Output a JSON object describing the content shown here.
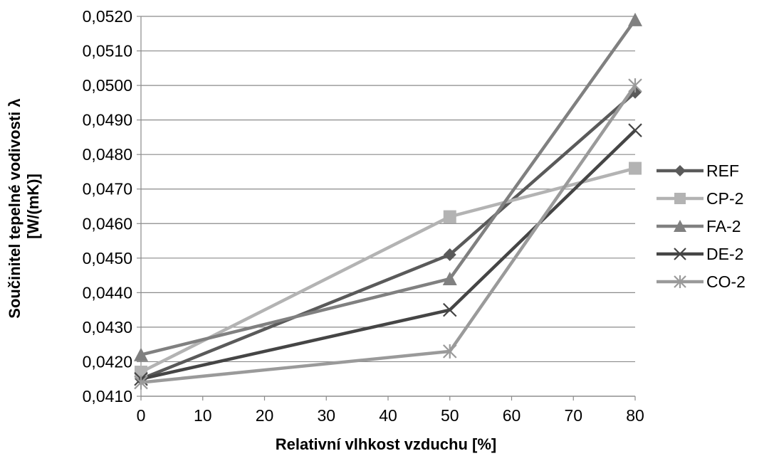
{
  "chart_data": {
    "type": "line",
    "xlabel": "Relativní vlhkost vzduchu [%]",
    "ylabel_lines": [
      "Součinitel tepelné vodivosti λ",
      "[W/(mK)]"
    ],
    "xlim": [
      0,
      80
    ],
    "ylim": [
      0.041,
      0.052
    ],
    "x_ticks": [
      0,
      10,
      20,
      30,
      40,
      50,
      60,
      70,
      80
    ],
    "x_tick_labels": [
      "0",
      "10",
      "20",
      "30",
      "40",
      "50",
      "60",
      "70",
      "80"
    ],
    "y_ticks": [
      0.041,
      0.042,
      0.043,
      0.044,
      0.045,
      0.046,
      0.047,
      0.048,
      0.049,
      0.05,
      0.051,
      0.052
    ],
    "y_tick_labels": [
      "0,0410",
      "0,0420",
      "0,0430",
      "0,0440",
      "0,0450",
      "0,0460",
      "0,0470",
      "0,0480",
      "0,0490",
      "0,0500",
      "0,0510",
      "0,0520"
    ],
    "grid": "horizontal",
    "legend_position": "right",
    "x": [
      0,
      50,
      80
    ],
    "series": [
      {
        "name": "REF",
        "values": [
          0.0415,
          0.0451,
          0.0498
        ],
        "color": "#5a5a5a",
        "marker": "diamond"
      },
      {
        "name": "CP-2",
        "values": [
          0.0417,
          0.0462,
          0.0476
        ],
        "color": "#b3b3b3",
        "marker": "square"
      },
      {
        "name": "FA-2",
        "values": [
          0.0422,
          0.0444,
          0.0519
        ],
        "color": "#808080",
        "marker": "triangle"
      },
      {
        "name": "DE-2",
        "values": [
          0.0415,
          0.0435,
          0.0487
        ],
        "color": "#454545",
        "marker": "x"
      },
      {
        "name": "CO-2",
        "values": [
          0.0414,
          0.0423,
          0.05
        ],
        "color": "#9a9a9a",
        "marker": "asterisk"
      }
    ]
  }
}
